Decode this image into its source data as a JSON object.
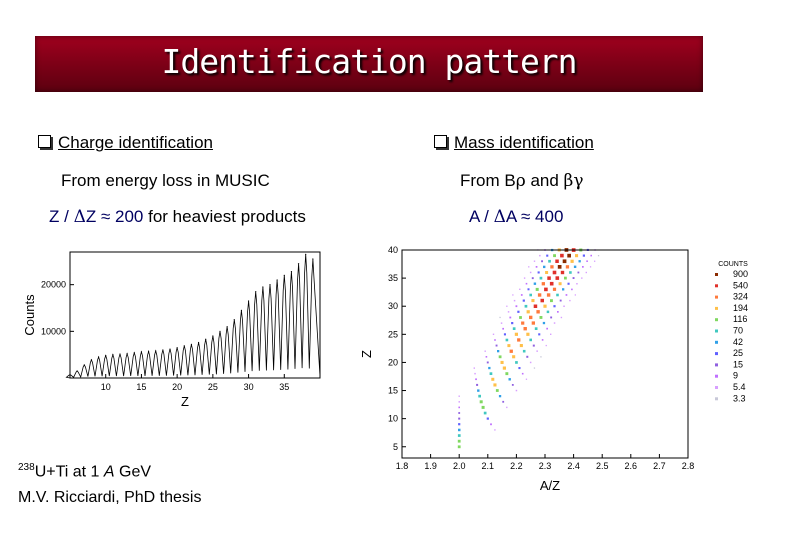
{
  "title": "Identification pattern",
  "left": {
    "heading": "Charge identification",
    "method": "From energy loss in MUSIC",
    "resolution_prefix": "Z / ",
    "resolution_delta": "Δ",
    "resolution_var": "Z",
    "resolution_approx": " ≈ 200",
    "resolution_suffix": " for heaviest products"
  },
  "right": {
    "heading": "Mass identification",
    "method_prefix": "From ",
    "method_b": "B",
    "method_rho": "ρ",
    "method_and": " and ",
    "method_beta": "β",
    "method_gamma": "γ",
    "resolution_prefix": "A / ",
    "resolution_delta": "Δ",
    "resolution_var": "A",
    "resolution_approx": " ≈ 400"
  },
  "footer": {
    "mass_number": "238",
    "reaction_1": "U+Ti at 1 ",
    "reaction_A": "A",
    "reaction_2": " GeV",
    "reference": "M.V. Ricciardi, PhD thesis"
  },
  "colors": {
    "banner": "#8a001a",
    "resolution_text": "#000060",
    "counts_scale": [
      "#8b2b00",
      "#e0302a",
      "#ff7a3c",
      "#ffc04a",
      "#80d860",
      "#40c8c0",
      "#30a0e8",
      "#6060ff",
      "#9060e0",
      "#c070ff",
      "#d8a0ff",
      "#c8c8d8"
    ]
  },
  "chart_data": [
    {
      "type": "line",
      "xlabel": "Z",
      "ylabel": "Counts",
      "x_ticks": [
        "10",
        "15",
        "20",
        "25",
        "30",
        "35"
      ],
      "y_ticks": [
        "10000",
        "20000"
      ],
      "xlim": [
        5,
        40
      ],
      "ylim": [
        0,
        27000
      ],
      "peak_z": [
        5,
        6,
        7,
        8,
        9,
        10,
        11,
        12,
        13,
        14,
        15,
        16,
        17,
        18,
        19,
        20,
        21,
        22,
        23,
        24,
        25,
        26,
        27,
        28,
        29,
        30,
        31,
        32,
        33,
        34,
        35,
        36,
        37,
        38,
        39
      ],
      "peak_counts": [
        700,
        1500,
        2800,
        3900,
        4500,
        4800,
        5000,
        5100,
        5200,
        5400,
        5600,
        5700,
        5800,
        6000,
        6200,
        6500,
        6900,
        7200,
        7600,
        8300,
        9000,
        10000,
        11000,
        12500,
        14500,
        16500,
        18500,
        19500,
        20000,
        21000,
        22000,
        22800,
        24500,
        26500,
        25500
      ]
    },
    {
      "type": "heatmap",
      "xlabel": "A/Z",
      "ylabel": "Z",
      "x_ticks": [
        "1.8",
        "1.9",
        "2.0",
        "2.1",
        "2.2",
        "2.3",
        "2.4",
        "2.5",
        "2.6",
        "2.7",
        "2.8"
      ],
      "y_ticks": [
        "5",
        "10",
        "15",
        "20",
        "25",
        "30",
        "35",
        "40"
      ],
      "xlim": [
        1.8,
        2.8
      ],
      "ylim": [
        3,
        40
      ],
      "legend_title": "COUNTS",
      "legend_levels": [
        "900",
        "540",
        "324",
        "194",
        "116",
        "70",
        "42",
        "25",
        "15",
        "9",
        "5.4",
        "3.3"
      ]
    }
  ]
}
